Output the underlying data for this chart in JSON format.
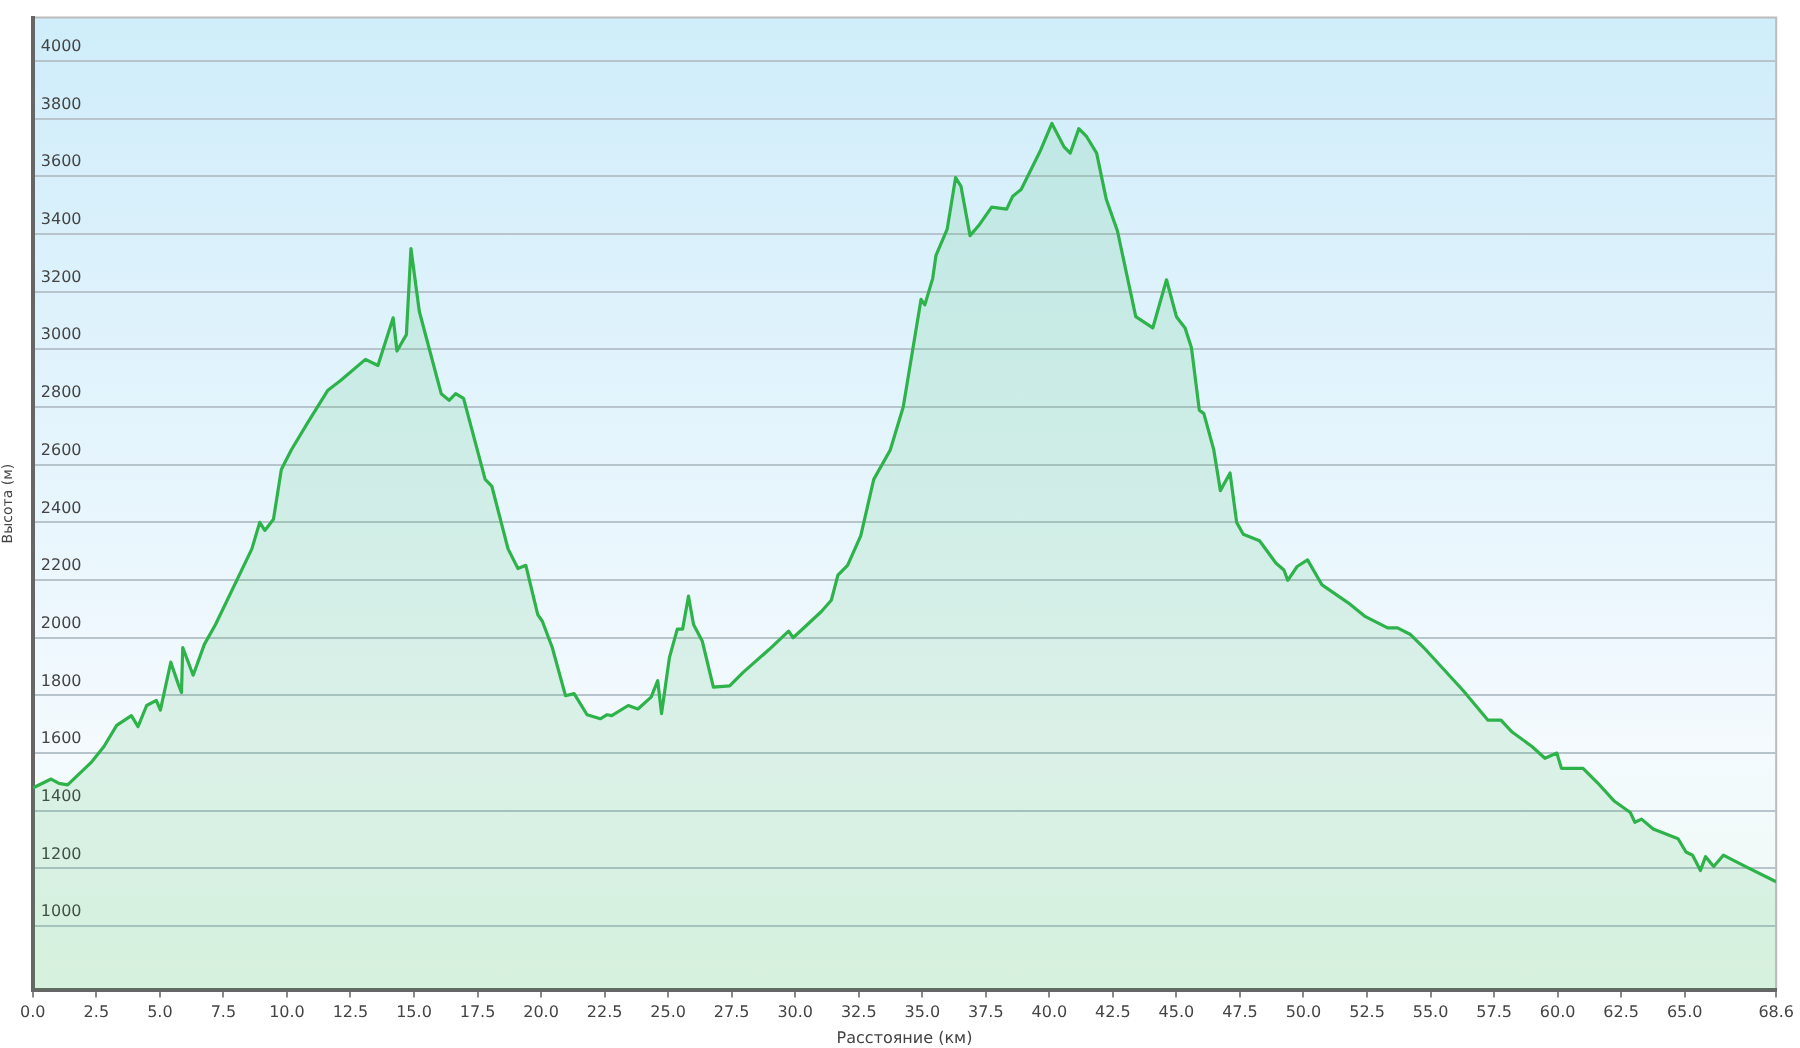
{
  "chart_data": {
    "type": "area",
    "xlabel": "Расстояние (км)",
    "ylabel": "Высота (м)",
    "x": [
      0,
      0.72,
      1.03,
      1.37,
      2.28,
      2.8,
      3.3,
      3.88,
      4.14,
      4.48,
      4.86,
      5.02,
      5.43,
      5.72,
      5.85,
      5.9,
      6.31,
      6.75,
      7.19,
      8.62,
      8.93,
      9.13,
      9.47,
      9.78,
      10.17,
      10.8,
      11.6,
      12.1,
      13.09,
      13.58,
      14.18,
      14.33,
      14.7,
      14.88,
      15.21,
      16.07,
      16.38,
      16.64,
      16.95,
      17.8,
      18.06,
      18.7,
      19.09,
      19.4,
      19.87,
      20.05,
      20.44,
      20.96,
      21.3,
      21.81,
      22.33,
      22.6,
      22.78,
      23.43,
      23.81,
      24.33,
      24.59,
      24.74,
      25.05,
      25.36,
      25.57,
      25.8,
      26.0,
      26.34,
      26.78,
      27.42,
      27.94,
      28.97,
      29.74,
      29.92,
      31.03,
      31.42,
      31.68,
      32.06,
      32.58,
      33.09,
      33.74,
      34.25,
      34.95,
      35.1,
      35.41,
      35.54,
      35.98,
      36.31,
      36.52,
      36.88,
      37.22,
      37.73,
      38.32,
      38.56,
      38.89,
      39.66,
      40.1,
      40.57,
      40.82,
      41.16,
      41.47,
      41.86,
      42.24,
      42.68,
      43.4,
      44.07,
      44.61,
      45.0,
      45.34,
      45.59,
      45.9,
      46.08,
      46.47,
      46.73,
      47.11,
      47.37,
      47.63,
      48.27,
      48.92,
      49.23,
      49.38,
      49.75,
      50.16,
      50.73,
      51.76,
      52.4,
      53.31,
      53.7,
      54.21,
      54.73,
      56.28,
      57.26,
      57.77,
      58.21,
      58.99,
      59.5,
      59.97,
      60.15,
      61.0,
      61.57,
      62.21,
      62.86,
      63.04,
      63.3,
      63.76,
      64.74,
      65.05,
      65.31,
      65.62,
      65.82,
      66.14,
      66.52,
      67.38,
      68.6
    ],
    "series": [
      {
        "color": "#2db34a",
        "values": [
          1479,
          1510,
          1495,
          1490,
          1566,
          1623,
          1696,
          1730,
          1692,
          1765,
          1783,
          1749,
          1915,
          1840,
          1810,
          1966,
          1870,
          1977,
          2046,
          2308,
          2400,
          2372,
          2411,
          2583,
          2651,
          2743,
          2857,
          2891,
          2965,
          2944,
          3109,
          2994,
          3051,
          3349,
          3131,
          2846,
          2823,
          2846,
          2830,
          2549,
          2526,
          2308,
          2240,
          2251,
          2080,
          2057,
          1966,
          1799,
          1806,
          1733,
          1719,
          1733,
          1730,
          1765,
          1753,
          1794,
          1851,
          1737,
          1931,
          2030,
          2030,
          2144,
          2046,
          1989,
          1829,
          1833,
          1879,
          1959,
          2023,
          2000,
          2091,
          2130,
          2217,
          2251,
          2354,
          2549,
          2651,
          2800,
          3173,
          3154,
          3246,
          3326,
          3417,
          3595,
          3566,
          3394,
          3429,
          3493,
          3486,
          3531,
          3554,
          3691,
          3783,
          3703,
          3680,
          3765,
          3737,
          3680,
          3520,
          3410,
          3113,
          3074,
          3241,
          3113,
          3074,
          3006,
          2789,
          2777,
          2651,
          2510,
          2571,
          2400,
          2359,
          2336,
          2258,
          2235,
          2199,
          2247,
          2270,
          2183,
          2121,
          2075,
          2034,
          2034,
          2011,
          1966,
          1817,
          1714,
          1714,
          1673,
          1623,
          1582,
          1600,
          1547,
          1547,
          1497,
          1435,
          1394,
          1360,
          1371,
          1337,
          1303,
          1257,
          1246,
          1193,
          1241,
          1207,
          1246,
          1207,
          1154
        ]
      }
    ],
    "xlim": [
      0,
      68.6
    ],
    "ylim": [
      780,
      4150
    ],
    "xticks": [
      {
        "value": 0,
        "label": "0.0"
      },
      2.5,
      {
        "value": 5,
        "label": "5.0"
      },
      7.5,
      {
        "value": 10,
        "label": "10.0"
      },
      12.5,
      {
        "value": 15,
        "label": "15.0"
      },
      17.5,
      {
        "value": 20,
        "label": "20.0"
      },
      22.5,
      {
        "value": 25,
        "label": "25.0"
      },
      27.5,
      {
        "value": 30,
        "label": "30.0"
      },
      32.5,
      {
        "value": 35,
        "label": "35.0"
      },
      37.5,
      {
        "value": 40,
        "label": "40.0"
      },
      42.5,
      {
        "value": 45,
        "label": "45.0"
      },
      47.5,
      {
        "value": 50,
        "label": "50.0"
      },
      52.5,
      {
        "value": 55,
        "label": "55.0"
      },
      57.5,
      {
        "value": 60,
        "label": "60.0"
      },
      62.5,
      {
        "value": 65,
        "label": "65.0"
      },
      68.6
    ],
    "yticks": [
      1000,
      1200,
      1400,
      1600,
      1800,
      2000,
      2200,
      2400,
      2600,
      2800,
      3000,
      3200,
      3400,
      3600,
      3800,
      4000
    ],
    "grid": "y",
    "legend": false,
    "marker": "none"
  }
}
